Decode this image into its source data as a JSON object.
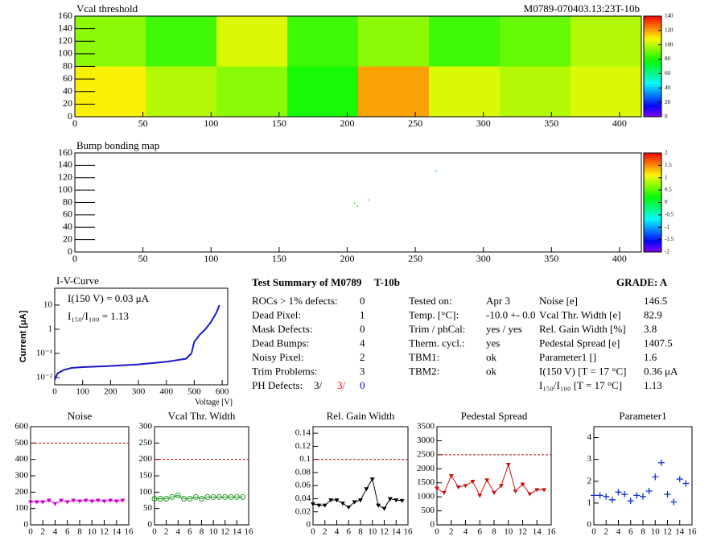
{
  "chart_data": [
    {
      "type": "heatmap",
      "title": "Vcal threshold",
      "annotation": "M0789-070403.13:23T-10b",
      "xedges": [
        0,
        52,
        104,
        156,
        208,
        260,
        312,
        364,
        416
      ],
      "yedges": [
        0,
        80,
        160
      ],
      "z": [
        [
          110,
          100,
          95,
          80,
          120,
          105,
          100,
          105
        ],
        [
          95,
          85,
          105,
          85,
          95,
          85,
          90,
          100
        ]
      ],
      "xlim": [
        0,
        416
      ],
      "ylim": [
        0,
        160
      ],
      "xticks": [
        0,
        50,
        100,
        150,
        200,
        250,
        300,
        350,
        400
      ],
      "yticks": [
        0,
        20,
        40,
        60,
        80,
        100,
        120,
        140,
        160
      ],
      "zlim": [
        0,
        140
      ],
      "zticks": [
        0,
        20,
        40,
        60,
        80,
        100,
        120,
        140
      ]
    },
    {
      "type": "scatter",
      "title": "Bump bonding map",
      "color": "#22cc22",
      "x": [
        205,
        207,
        215,
        265
      ],
      "y": [
        80,
        75,
        85,
        132
      ],
      "xlim": [
        0,
        416
      ],
      "ylim": [
        0,
        160
      ],
      "xticks": [
        0,
        50,
        100,
        150,
        200,
        250,
        300,
        350,
        400
      ],
      "yticks": [
        0,
        20,
        40,
        60,
        80,
        100,
        120,
        140,
        160
      ],
      "zlim": [
        -2,
        2
      ],
      "zticks": [
        -2,
        -1.5,
        -1,
        -0.5,
        0,
        0.5,
        1,
        1.5,
        2
      ]
    },
    {
      "type": "iv",
      "title": "I-V-Curve",
      "xlabel": "Voltage [V]",
      "ylabel": "Current [μA]",
      "color": "#1a1acc",
      "log_y": true,
      "annotations": [
        "I(150 V) = 0.03 μA",
        "I₁₅₀/I₁₀₀ =  1.13"
      ],
      "x": [
        0,
        10,
        30,
        60,
        100,
        200,
        300,
        400,
        470,
        490,
        500,
        520,
        540,
        560,
        580,
        590
      ],
      "y": [
        0.008,
        0.015,
        0.02,
        0.025,
        0.027,
        0.03,
        0.035,
        0.045,
        0.06,
        0.1,
        0.3,
        0.6,
        1,
        2,
        5,
        10
      ],
      "xlim": [
        0,
        620
      ],
      "ylim": [
        0.005,
        50
      ],
      "xticks": [
        0,
        100,
        200,
        300,
        400,
        500,
        600
      ],
      "yticks": [
        {
          "value": 0.01,
          "label": "10⁻²"
        },
        {
          "value": 0.1,
          "label": "10⁻¹"
        },
        1,
        10
      ]
    },
    {
      "type": "line",
      "title": "Noise",
      "color": "#cc00cc",
      "marker": "triangle",
      "limit": 500,
      "x": [
        0,
        1,
        2,
        3,
        4,
        5,
        6,
        7,
        8,
        9,
        10,
        11,
        12,
        13,
        14,
        15
      ],
      "values": [
        140,
        140,
        140,
        150,
        130,
        150,
        140,
        150,
        145,
        150,
        145,
        150,
        145,
        150,
        145,
        150
      ],
      "xlim": [
        0,
        16
      ],
      "ylim": [
        0,
        600
      ],
      "xticks": [
        0,
        2,
        4,
        6,
        8,
        10,
        12,
        14,
        16
      ],
      "yticks": [
        0,
        100,
        200,
        300,
        400,
        500,
        600
      ]
    },
    {
      "type": "line",
      "title": "Vcal Thr. Width",
      "color": "#229922",
      "marker": "circle",
      "limit": 200,
      "x": [
        0,
        1,
        2,
        3,
        4,
        5,
        6,
        7,
        8,
        9,
        10,
        11,
        12,
        13,
        14,
        15
      ],
      "values": [
        80,
        80,
        80,
        85,
        90,
        80,
        80,
        85,
        80,
        85,
        85,
        85,
        85,
        85,
        85,
        85
      ],
      "xlim": [
        0,
        16
      ],
      "ylim": [
        0,
        300
      ],
      "xticks": [
        0,
        2,
        4,
        6,
        8,
        10,
        12,
        14,
        16
      ],
      "yticks": [
        0,
        50,
        100,
        150,
        200,
        250,
        300
      ]
    },
    {
      "type": "line",
      "title": "Rel. Gain Width",
      "color": "#000000",
      "marker": "triangle",
      "limit": 0.1,
      "x": [
        0,
        1,
        2,
        3,
        4,
        5,
        6,
        7,
        8,
        9,
        10,
        11,
        12,
        13,
        14,
        15
      ],
      "values": [
        0.032,
        0.03,
        0.03,
        0.038,
        0.038,
        0.033,
        0.027,
        0.035,
        0.038,
        0.055,
        0.07,
        0.03,
        0.025,
        0.04,
        0.038,
        0.037
      ],
      "xlim": [
        0,
        16
      ],
      "ylim": [
        0,
        0.15
      ],
      "xticks": [
        0,
        2,
        4,
        6,
        8,
        10,
        12,
        14,
        16
      ],
      "yticks": [
        0,
        0.02,
        0.04,
        0.06,
        0.08,
        0.1,
        0.12,
        0.14
      ]
    },
    {
      "type": "line",
      "title": "Pedestal Spread",
      "color": "#cc1111",
      "marker": "triangle",
      "limit": 2500,
      "x": [
        0,
        1,
        2,
        3,
        4,
        5,
        6,
        7,
        8,
        9,
        10,
        11,
        12,
        13,
        14,
        15
      ],
      "values": [
        1300,
        1150,
        1750,
        1350,
        1400,
        1550,
        1050,
        1600,
        1150,
        1400,
        2150,
        1200,
        1450,
        1100,
        1250,
        1250
      ],
      "xlim": [
        0,
        16
      ],
      "ylim": [
        0,
        3500
      ],
      "xticks": [
        0,
        2,
        4,
        6,
        8,
        10,
        12,
        14,
        16
      ],
      "yticks": [
        0,
        500,
        1000,
        1500,
        2000,
        2500,
        3000,
        3500
      ]
    },
    {
      "type": "points",
      "title": "Parameter1",
      "color": "#1133cc",
      "marker": "cross",
      "x": [
        0,
        1,
        2,
        3,
        4,
        5,
        6,
        7,
        8,
        9,
        10,
        11,
        12,
        13,
        14,
        15
      ],
      "values": [
        1.35,
        1.35,
        1.3,
        1.15,
        1.5,
        1.4,
        1.1,
        1.35,
        1.3,
        1.55,
        2.2,
        2.85,
        1.4,
        1.05,
        2.1,
        1.9
      ],
      "xlim": [
        0,
        16
      ],
      "ylim": [
        0,
        4.5
      ],
      "xticks": [
        0,
        2,
        4,
        6,
        8,
        10,
        12,
        14,
        16
      ],
      "yticks": [
        0,
        1,
        2,
        3,
        4
      ]
    }
  ],
  "summary": {
    "title": "Test Summary of M0789",
    "module": "T-10b",
    "grade": "GRADE:  A",
    "left": [
      [
        "ROCs > 1% defects:",
        0
      ],
      [
        "Dead Pixel:",
        1
      ],
      [
        "Mask Defects:",
        0
      ],
      [
        "Dead Bumps:",
        4
      ],
      [
        "Noisy Pixel:",
        2
      ],
      [
        "Trim Problems:",
        3
      ]
    ],
    "ph_defects": {
      "label": "PH Defects:",
      "values": [
        "3/",
        "3/",
        "0"
      ]
    },
    "middle": [
      [
        "Tested on:",
        "Apr 3"
      ],
      [
        "Temp. [°C]:",
        "-10.0 +- 0.0"
      ],
      [
        "Trim / phCal:",
        "yes / yes"
      ],
      [
        "Therm. cycl.:",
        "yes"
      ],
      [
        "TBM1:",
        "ok"
      ],
      [
        "TBM2:",
        "ok"
      ]
    ],
    "right": [
      [
        "Noise [e]",
        146.5
      ],
      [
        "Vcal Thr. Width [e]",
        82.9
      ],
      [
        "Rel. Gain Width [%]",
        3.8
      ],
      [
        "Pedestal Spread [e]",
        1407.5
      ],
      [
        "Parameter1 []",
        1.6
      ],
      [
        "I(150 V) [T = 17 °C]",
        "0.36 μA"
      ],
      [
        "I₁₅₀/I₁₀₀ [T = 17 °C]",
        1.13
      ]
    ]
  }
}
